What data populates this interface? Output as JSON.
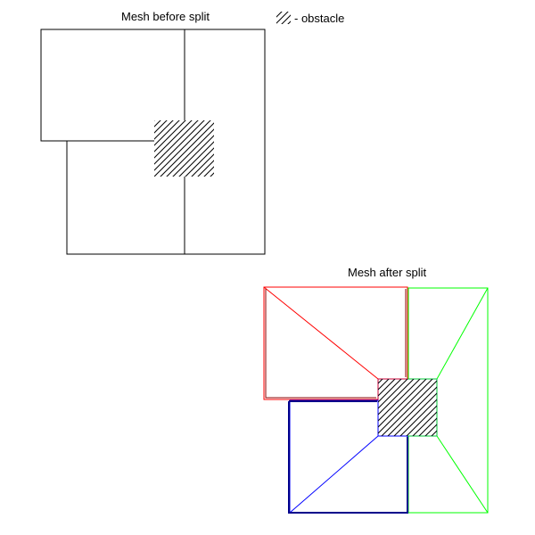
{
  "titles": {
    "before": "Mesh before split",
    "after": "Mesh after split"
  },
  "legend": {
    "label": "- obstacle",
    "pattern": "diagonal-hatch"
  },
  "colors": {
    "outline": "#000000",
    "hatch": "#000000",
    "region_red": "#ff0000",
    "region_green": "#00ff00",
    "region_blue": "#0000ff",
    "region_navy": "#00008b"
  }
}
